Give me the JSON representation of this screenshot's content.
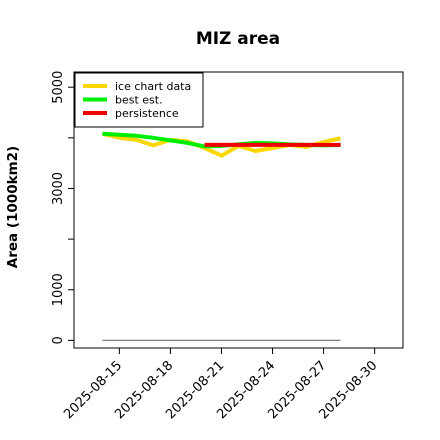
{
  "chart_data": {
    "type": "line",
    "title": "MIZ area",
    "xlabel": "",
    "ylabel": "Area (1000km2)",
    "x_ticks": [
      "2025-08-15",
      "2025-08-18",
      "2025-08-21",
      "2025-08-24",
      "2025-08-27",
      "2025-08-30"
    ],
    "y_ticks": [
      "0",
      "1000",
      "3000",
      "5000"
    ],
    "y_minor_ticks": [
      2000,
      4000
    ],
    "ylim": [
      -150,
      5300
    ],
    "xlim": [
      "2025-08-12T08:00",
      "2025-08-31T16:00"
    ],
    "grid": false,
    "legend": "top-left",
    "series": [
      {
        "name": "ice chart data",
        "color": "#FFD700",
        "x": [
          "2025-08-14",
          "2025-08-15",
          "2025-08-16",
          "2025-08-17",
          "2025-08-18",
          "2025-08-19",
          "2025-08-20",
          "2025-08-21",
          "2025-08-22",
          "2025-08-23",
          "2025-08-24",
          "2025-08-25",
          "2025-08-26",
          "2025-08-27",
          "2025-08-28"
        ],
        "values": [
          4080,
          4000,
          3960,
          3850,
          3960,
          3930,
          3800,
          3650,
          3840,
          3740,
          3800,
          3860,
          3820,
          3920,
          3990
        ]
      },
      {
        "name": "best est.",
        "color": "#00EE00",
        "x": [
          "2025-08-14",
          "2025-08-15",
          "2025-08-16",
          "2025-08-17",
          "2025-08-18",
          "2025-08-19",
          "2025-08-20",
          "2025-08-21",
          "2025-08-22",
          "2025-08-23",
          "2025-08-24",
          "2025-08-25",
          "2025-08-26",
          "2025-08-27",
          "2025-08-28"
        ],
        "values": [
          4080,
          4060,
          4040,
          4000,
          3950,
          3900,
          3830,
          3840,
          3870,
          3900,
          3890,
          3870,
          3860,
          3850,
          3860
        ]
      },
      {
        "name": "persistence",
        "color": "#EE0000",
        "x": [
          "2025-08-20",
          "2025-08-28"
        ],
        "values": [
          3860,
          3860
        ]
      },
      {
        "name": "",
        "color": "#808080",
        "x": [
          "2025-08-14",
          "2025-08-28"
        ],
        "values": [
          0,
          0
        ]
      }
    ]
  }
}
